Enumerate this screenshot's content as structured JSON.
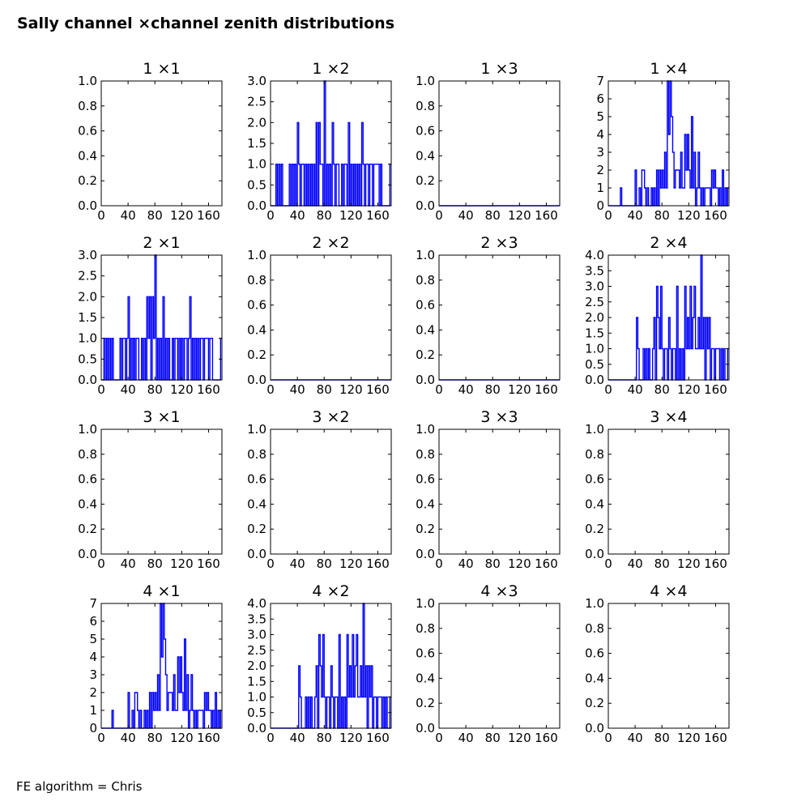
{
  "figure": {
    "title": "Sally channel ×channel zenith distributions",
    "footer": "FE algorithm = Chris",
    "series_color": "#0000ff"
  },
  "chart_data": [
    {
      "type": "line",
      "title": "1 ×1",
      "xlim": [
        0,
        180
      ],
      "xticks": [
        0,
        40,
        80,
        120,
        160
      ],
      "ylim": [
        0,
        1
      ],
      "yticks": [
        0.0,
        0.2,
        0.4,
        0.6,
        0.8,
        1.0
      ],
      "x": [],
      "values": []
    },
    {
      "type": "line",
      "title": "1 ×2",
      "xlim": [
        0,
        180
      ],
      "xticks": [
        0,
        40,
        80,
        120,
        160
      ],
      "ylim": [
        0,
        3
      ],
      "yticks": [
        0.0,
        0.5,
        1.0,
        1.5,
        2.0,
        2.5,
        3.0
      ],
      "x": [
        0,
        2,
        4,
        6,
        8,
        10,
        12,
        14,
        16,
        18,
        20,
        22,
        24,
        26,
        28,
        30,
        32,
        34,
        36,
        38,
        40,
        42,
        44,
        46,
        48,
        50,
        52,
        54,
        56,
        58,
        60,
        62,
        64,
        66,
        68,
        70,
        72,
        74,
        76,
        78,
        80,
        82,
        84,
        86,
        88,
        90,
        92,
        94,
        96,
        98,
        100,
        102,
        104,
        106,
        108,
        110,
        112,
        114,
        116,
        118,
        120,
        122,
        124,
        126,
        128,
        130,
        132,
        134,
        136,
        138,
        140,
        142,
        144,
        146,
        148,
        150,
        152,
        154,
        156,
        158,
        160,
        162,
        164,
        166,
        168,
        170,
        172,
        174,
        176,
        178
      ],
      "values": [
        0,
        0,
        0,
        0,
        1,
        0,
        1,
        0,
        1,
        0,
        0,
        0,
        0,
        0,
        1,
        0,
        1,
        0,
        1,
        0,
        2,
        1,
        0,
        1,
        1,
        0,
        1,
        0,
        1,
        0,
        1,
        0,
        1,
        0,
        2,
        0,
        2,
        1,
        1,
        0,
        3,
        0,
        1,
        0,
        1,
        0,
        2,
        1,
        0,
        1,
        1,
        0,
        0,
        1,
        0,
        1,
        1,
        0,
        2,
        0,
        1,
        0,
        1,
        0,
        1,
        0,
        1,
        0,
        2,
        1,
        0,
        1,
        1,
        0,
        1,
        1,
        0,
        1,
        1,
        1,
        1,
        0,
        1,
        0,
        0,
        0,
        0,
        0,
        0,
        1
      ]
    },
    {
      "type": "line",
      "title": "1 ×3",
      "xlim": [
        0,
        180
      ],
      "xticks": [
        0,
        40,
        80,
        120,
        160
      ],
      "ylim": [
        0,
        1
      ],
      "yticks": [
        0.0,
        0.2,
        0.4,
        0.6,
        0.8,
        1.0
      ],
      "x": [
        0,
        180
      ],
      "values": [
        0,
        0
      ]
    },
    {
      "type": "line",
      "title": "1 ×4",
      "xlim": [
        0,
        180
      ],
      "xticks": [
        0,
        40,
        80,
        120,
        160
      ],
      "ylim": [
        0,
        7
      ],
      "yticks": [
        0,
        1,
        2,
        3,
        4,
        5,
        6,
        7
      ],
      "x": [
        0,
        2,
        4,
        6,
        8,
        10,
        12,
        14,
        16,
        18,
        20,
        22,
        24,
        26,
        28,
        30,
        32,
        34,
        36,
        38,
        40,
        42,
        44,
        46,
        48,
        50,
        52,
        54,
        56,
        58,
        60,
        62,
        64,
        66,
        68,
        70,
        72,
        74,
        76,
        78,
        80,
        82,
        84,
        86,
        88,
        90,
        92,
        94,
        96,
        98,
        100,
        102,
        104,
        106,
        108,
        110,
        112,
        114,
        116,
        118,
        120,
        122,
        124,
        126,
        128,
        130,
        132,
        134,
        136,
        138,
        140,
        142,
        144,
        146,
        148,
        150,
        152,
        154,
        156,
        158,
        160,
        162,
        164,
        166,
        168,
        170,
        172,
        174,
        176,
        178
      ],
      "values": [
        0,
        0,
        0,
        0,
        0,
        0,
        0,
        0,
        0,
        1,
        0,
        0,
        0,
        0,
        0,
        0,
        0,
        0,
        0,
        0,
        2,
        0,
        0,
        1,
        0,
        2,
        2,
        1,
        0,
        1,
        0,
        0,
        1,
        0,
        1,
        0,
        2,
        0,
        2,
        1,
        2,
        1,
        3,
        1,
        7,
        4,
        7,
        5,
        3,
        1,
        2,
        2,
        2,
        1,
        3,
        1,
        1,
        4,
        2,
        4,
        2,
        1,
        5,
        1,
        3,
        0,
        1,
        3,
        1,
        0,
        1,
        0,
        1,
        1,
        1,
        1,
        0,
        2,
        1,
        2,
        1,
        1,
        0,
        1,
        0,
        2,
        0,
        1,
        0,
        1
      ]
    },
    {
      "type": "line",
      "title": "2 ×1",
      "xlim": [
        0,
        180
      ],
      "xticks": [
        0,
        40,
        80,
        120,
        160
      ],
      "ylim": [
        0,
        3
      ],
      "yticks": [
        0.0,
        0.5,
        1.0,
        1.5,
        2.0,
        2.5,
        3.0
      ],
      "x": [
        0,
        2,
        4,
        6,
        8,
        10,
        12,
        14,
        16,
        18,
        20,
        22,
        24,
        26,
        28,
        30,
        32,
        34,
        36,
        38,
        40,
        42,
        44,
        46,
        48,
        50,
        52,
        54,
        56,
        58,
        60,
        62,
        64,
        66,
        68,
        70,
        72,
        74,
        76,
        78,
        80,
        82,
        84,
        86,
        88,
        90,
        92,
        94,
        96,
        98,
        100,
        102,
        104,
        106,
        108,
        110,
        112,
        114,
        116,
        118,
        120,
        122,
        124,
        126,
        128,
        130,
        132,
        134,
        136,
        138,
        140,
        142,
        144,
        146,
        148,
        150,
        152,
        154,
        156,
        158,
        160,
        162,
        164,
        166,
        168,
        170,
        172,
        174,
        176,
        178
      ],
      "values": [
        0,
        0,
        1,
        0,
        1,
        0,
        1,
        0,
        1,
        0,
        0,
        0,
        0,
        0,
        1,
        0,
        1,
        1,
        0,
        1,
        2,
        0,
        1,
        0,
        1,
        0,
        1,
        1,
        0,
        0,
        1,
        0,
        1,
        0,
        2,
        1,
        2,
        0,
        2,
        1,
        3,
        0,
        1,
        0,
        1,
        0,
        2,
        0,
        1,
        0,
        1,
        0,
        0,
        1,
        0,
        1,
        1,
        0,
        1,
        0,
        1,
        0,
        1,
        1,
        0,
        1,
        2,
        0,
        1,
        0,
        1,
        0,
        1,
        0,
        1,
        1,
        0,
        1,
        1,
        1,
        0,
        1,
        1,
        0,
        0,
        0,
        0,
        0,
        0,
        1
      ]
    },
    {
      "type": "line",
      "title": "2 ×2",
      "xlim": [
        0,
        180
      ],
      "xticks": [
        0,
        40,
        80,
        120,
        160
      ],
      "ylim": [
        0,
        1
      ],
      "yticks": [
        0.0,
        0.2,
        0.4,
        0.6,
        0.8,
        1.0
      ],
      "x": [
        0,
        180
      ],
      "values": [
        0,
        0
      ]
    },
    {
      "type": "line",
      "title": "2 ×3",
      "xlim": [
        0,
        180
      ],
      "xticks": [
        0,
        40,
        80,
        120,
        160
      ],
      "ylim": [
        0,
        1
      ],
      "yticks": [
        0.0,
        0.2,
        0.4,
        0.6,
        0.8,
        1.0
      ],
      "x": [
        0,
        180
      ],
      "values": [
        0,
        0
      ]
    },
    {
      "type": "line",
      "title": "2 ×4",
      "xlim": [
        0,
        180
      ],
      "xticks": [
        0,
        40,
        80,
        120,
        160
      ],
      "ylim": [
        0,
        4
      ],
      "yticks": [
        0.0,
        0.5,
        1.0,
        1.5,
        2.0,
        2.5,
        3.0,
        3.5,
        4.0
      ],
      "x": [
        0,
        2,
        4,
        6,
        8,
        10,
        12,
        14,
        16,
        18,
        20,
        22,
        24,
        26,
        28,
        30,
        32,
        34,
        36,
        38,
        40,
        42,
        44,
        46,
        48,
        50,
        52,
        54,
        56,
        58,
        60,
        62,
        64,
        66,
        68,
        70,
        72,
        74,
        76,
        78,
        80,
        82,
        84,
        86,
        88,
        90,
        92,
        94,
        96,
        98,
        100,
        102,
        104,
        106,
        108,
        110,
        112,
        114,
        116,
        118,
        120,
        122,
        124,
        126,
        128,
        130,
        132,
        134,
        136,
        138,
        140,
        142,
        144,
        146,
        148,
        150,
        152,
        154,
        156,
        158,
        160,
        162,
        164,
        166,
        168,
        170,
        172,
        174,
        176,
        178
      ],
      "values": [
        0,
        0,
        0,
        0,
        0,
        0,
        0,
        0,
        0,
        0,
        0,
        0,
        0,
        0,
        0,
        0,
        0,
        0,
        0,
        0,
        0,
        2,
        1,
        0,
        0,
        0,
        1,
        0,
        1,
        0,
        1,
        0,
        0,
        1,
        2,
        0,
        3,
        2,
        1,
        3,
        1,
        0,
        1,
        1,
        0,
        2,
        1,
        0,
        1,
        1,
        0,
        3,
        0,
        1,
        0,
        1,
        0,
        3,
        1,
        2,
        1,
        3,
        1,
        2,
        3,
        1,
        1,
        2,
        1,
        4,
        1,
        2,
        0,
        2,
        1,
        2,
        0,
        1,
        1,
        0,
        1,
        1,
        1,
        0,
        1,
        0,
        1,
        0,
        0,
        1
      ]
    },
    {
      "type": "line",
      "title": "3 ×1",
      "xlim": [
        0,
        180
      ],
      "xticks": [
        0,
        40,
        80,
        120,
        160
      ],
      "ylim": [
        0,
        1
      ],
      "yticks": [
        0.0,
        0.2,
        0.4,
        0.6,
        0.8,
        1.0
      ],
      "x": [],
      "values": []
    },
    {
      "type": "line",
      "title": "3 ×2",
      "xlim": [
        0,
        180
      ],
      "xticks": [
        0,
        40,
        80,
        120,
        160
      ],
      "ylim": [
        0,
        1
      ],
      "yticks": [
        0.0,
        0.2,
        0.4,
        0.6,
        0.8,
        1.0
      ],
      "x": [],
      "values": []
    },
    {
      "type": "line",
      "title": "3 ×3",
      "xlim": [
        0,
        180
      ],
      "xticks": [
        0,
        40,
        80,
        120,
        160
      ],
      "ylim": [
        0,
        1
      ],
      "yticks": [
        0.0,
        0.2,
        0.4,
        0.6,
        0.8,
        1.0
      ],
      "x": [],
      "values": []
    },
    {
      "type": "line",
      "title": "3 ×4",
      "xlim": [
        0,
        180
      ],
      "xticks": [
        0,
        40,
        80,
        120,
        160
      ],
      "ylim": [
        0,
        1
      ],
      "yticks": [
        0.0,
        0.2,
        0.4,
        0.6,
        0.8,
        1.0
      ],
      "x": [],
      "values": []
    },
    {
      "type": "line",
      "title": "4 ×1",
      "xlim": [
        0,
        180
      ],
      "xticks": [
        0,
        40,
        80,
        120,
        160
      ],
      "ylim": [
        0,
        7
      ],
      "yticks": [
        0,
        1,
        2,
        3,
        4,
        5,
        6,
        7
      ],
      "x": [
        0,
        2,
        4,
        6,
        8,
        10,
        12,
        14,
        16,
        18,
        20,
        22,
        24,
        26,
        28,
        30,
        32,
        34,
        36,
        38,
        40,
        42,
        44,
        46,
        48,
        50,
        52,
        54,
        56,
        58,
        60,
        62,
        64,
        66,
        68,
        70,
        72,
        74,
        76,
        78,
        80,
        82,
        84,
        86,
        88,
        90,
        92,
        94,
        96,
        98,
        100,
        102,
        104,
        106,
        108,
        110,
        112,
        114,
        116,
        118,
        120,
        122,
        124,
        126,
        128,
        130,
        132,
        134,
        136,
        138,
        140,
        142,
        144,
        146,
        148,
        150,
        152,
        154,
        156,
        158,
        160,
        162,
        164,
        166,
        168,
        170,
        172,
        174,
        176,
        178
      ],
      "values": [
        0,
        0,
        0,
        0,
        0,
        0,
        0,
        0,
        1,
        0,
        0,
        0,
        0,
        0,
        0,
        0,
        0,
        0,
        0,
        0,
        2,
        0,
        0,
        1,
        0,
        2,
        2,
        1,
        0,
        1,
        0,
        0,
        1,
        0,
        1,
        0,
        2,
        0,
        2,
        1,
        2,
        1,
        3,
        1,
        7,
        4,
        7,
        5,
        3,
        1,
        2,
        2,
        2,
        1,
        3,
        1,
        1,
        4,
        2,
        4,
        2,
        1,
        5,
        1,
        3,
        0,
        1,
        3,
        1,
        0,
        1,
        0,
        1,
        1,
        1,
        1,
        0,
        2,
        1,
        2,
        1,
        1,
        0,
        1,
        0,
        2,
        0,
        1,
        0,
        1
      ]
    },
    {
      "type": "line",
      "title": "4 ×2",
      "xlim": [
        0,
        180
      ],
      "xticks": [
        0,
        40,
        80,
        120,
        160
      ],
      "ylim": [
        0,
        4
      ],
      "yticks": [
        0.0,
        0.5,
        1.0,
        1.5,
        2.0,
        2.5,
        3.0,
        3.5,
        4.0
      ],
      "x": [
        0,
        2,
        4,
        6,
        8,
        10,
        12,
        14,
        16,
        18,
        20,
        22,
        24,
        26,
        28,
        30,
        32,
        34,
        36,
        38,
        40,
        42,
        44,
        46,
        48,
        50,
        52,
        54,
        56,
        58,
        60,
        62,
        64,
        66,
        68,
        70,
        72,
        74,
        76,
        78,
        80,
        82,
        84,
        86,
        88,
        90,
        92,
        94,
        96,
        98,
        100,
        102,
        104,
        106,
        108,
        110,
        112,
        114,
        116,
        118,
        120,
        122,
        124,
        126,
        128,
        130,
        132,
        134,
        136,
        138,
        140,
        142,
        144,
        146,
        148,
        150,
        152,
        154,
        156,
        158,
        160,
        162,
        164,
        166,
        168,
        170,
        172,
        174,
        176,
        178
      ],
      "values": [
        0,
        0,
        0,
        0,
        0,
        0,
        0,
        0,
        0,
        0,
        0,
        0,
        0,
        0,
        0,
        0,
        0,
        0,
        0,
        0,
        0,
        2,
        1,
        0,
        0,
        0,
        1,
        0,
        1,
        0,
        1,
        0,
        0,
        1,
        2,
        0,
        3,
        2,
        1,
        3,
        1,
        0,
        1,
        1,
        0,
        2,
        1,
        0,
        1,
        1,
        0,
        3,
        0,
        1,
        0,
        1,
        0,
        3,
        1,
        2,
        1,
        3,
        1,
        2,
        3,
        1,
        1,
        2,
        1,
        4,
        1,
        2,
        0,
        2,
        1,
        2,
        0,
        1,
        1,
        0,
        1,
        1,
        1,
        0,
        1,
        0,
        1,
        0,
        0,
        1
      ]
    },
    {
      "type": "line",
      "title": "4 ×3",
      "xlim": [
        0,
        180
      ],
      "xticks": [
        0,
        40,
        80,
        120,
        160
      ],
      "ylim": [
        0,
        1
      ],
      "yticks": [
        0.0,
        0.2,
        0.4,
        0.6,
        0.8,
        1.0
      ],
      "x": [],
      "values": []
    },
    {
      "type": "line",
      "title": "4 ×4",
      "xlim": [
        0,
        180
      ],
      "xticks": [
        0,
        40,
        80,
        120,
        160
      ],
      "ylim": [
        0,
        1
      ],
      "yticks": [
        0.0,
        0.2,
        0.4,
        0.6,
        0.8,
        1.0
      ],
      "x": [],
      "values": []
    }
  ]
}
